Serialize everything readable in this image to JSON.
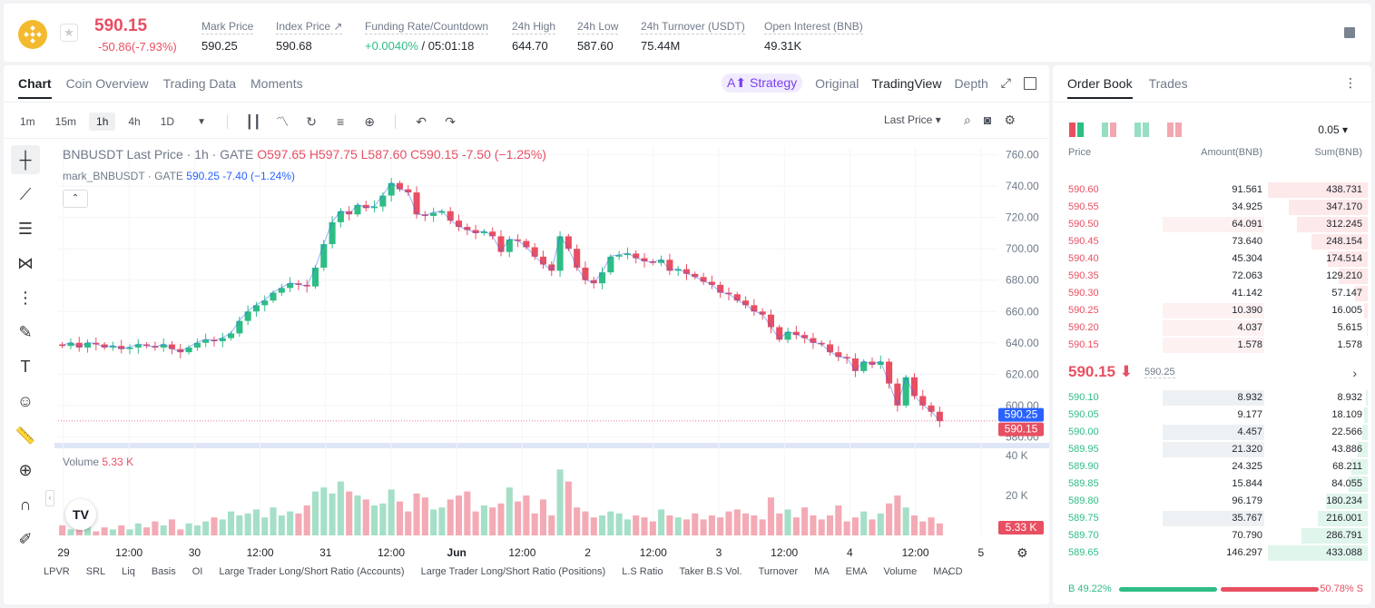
{
  "header": {
    "price": "590.15",
    "change": "-50.86(-7.93%)",
    "stats": [
      {
        "label": "Mark Price",
        "value": "590.25"
      },
      {
        "label": "Index Price ↗",
        "value": "590.68"
      },
      {
        "label": "Funding Rate/Countdown",
        "value_green": "+0.0040%",
        "value": " / 05:01:18"
      },
      {
        "label": "24h High",
        "value": "644.70"
      },
      {
        "label": "24h Low",
        "value": "587.60"
      },
      {
        "label": "24h Turnover (USDT)",
        "value": "75.44M"
      },
      {
        "label": "Open Interest (BNB)",
        "value": "49.31K"
      }
    ]
  },
  "chart_tabs": [
    "Chart",
    "Coin Overview",
    "Trading Data",
    "Moments"
  ],
  "chart_modes": {
    "strategy": "Strategy",
    "original": "Original",
    "tradingview": "TradingView",
    "depth": "Depth"
  },
  "timeframes": [
    "1m",
    "15m",
    "1h",
    "4h",
    "1D"
  ],
  "selected_timeframe": "1h",
  "last_price_label": "Last Price",
  "legend": {
    "title": "BNBUSDT Last Price · 1h · GATE",
    "ohlc": "O597.65 H597.75 L587.60 C590.15 -7.50 (−1.25%)",
    "mark_title": "mark_BNBUSDT · GATE",
    "mark_values": "590.25 -7.40 (−1.24%)",
    "volume_title": "Volume",
    "volume_value": "5.33 K"
  },
  "indicators": [
    "LPVR",
    "SRL",
    "Liq",
    "Basis",
    "OI",
    "Large Trader Long/Short Ratio (Accounts)",
    "Large Trader Long/Short Ratio (Positions)",
    "L.S Ratio",
    "Taker B.S Vol.",
    "Turnover",
    "MA",
    "EMA",
    "Volume",
    "MACD"
  ],
  "colors": {
    "up": "#2ebd85",
    "down": "#e84f62",
    "mark": "#2962ff"
  },
  "chart_data": {
    "type": "candlestick",
    "price_axis": [
      "760.00",
      "740.00",
      "720.00",
      "700.00",
      "680.00",
      "660.00",
      "640.00",
      "620.00",
      "600.00",
      "580.00"
    ],
    "volume_axis": [
      "40 K",
      "20 K"
    ],
    "time_axis": [
      "29",
      "12:00",
      "30",
      "12:00",
      "31",
      "12:00",
      "Jun",
      "12:00",
      "2",
      "12:00",
      "3",
      "12:00",
      "4",
      "12:00",
      "5"
    ],
    "ylim": [
      575,
      765
    ],
    "mark_price_tag": "590.25",
    "last_price_tag": "590.15",
    "volume_tag": "5.33 K",
    "close_path": [
      638,
      640,
      637,
      640,
      639,
      637,
      638,
      636,
      637,
      639,
      638,
      637,
      639,
      636,
      634,
      637,
      640,
      642,
      641,
      643,
      646,
      654,
      660,
      664,
      667,
      672,
      675,
      678,
      677,
      676,
      688,
      703,
      717,
      724,
      722,
      728,
      726,
      727,
      734,
      742,
      738,
      736,
      722,
      721,
      723,
      724,
      718,
      714,
      712,
      710,
      711,
      708,
      698,
      706,
      705,
      701,
      695,
      690,
      686,
      708,
      700,
      688,
      680,
      678,
      685,
      695,
      696,
      697,
      694,
      692,
      691,
      693,
      686,
      687,
      684,
      682,
      679,
      677,
      672,
      671,
      667,
      664,
      660,
      658,
      650,
      642,
      647,
      645,
      643,
      640,
      639,
      634,
      631,
      630,
      622,
      628,
      626,
      628,
      614,
      600,
      618,
      606,
      600,
      596,
      590
    ],
    "volume_path": [
      5,
      3,
      4,
      6,
      2,
      4,
      3,
      5,
      3,
      6,
      4,
      7,
      5,
      8,
      3,
      6,
      5,
      7,
      9,
      8,
      12,
      10,
      11,
      13,
      9,
      14,
      10,
      12,
      11,
      15,
      22,
      24,
      21,
      27,
      22,
      20,
      18,
      15,
      16,
      23,
      17,
      12,
      21,
      19,
      13,
      14,
      18,
      20,
      22,
      12,
      15,
      14,
      16,
      24,
      17,
      20,
      11,
      18,
      10,
      33,
      27,
      14,
      12,
      9,
      10,
      12,
      11,
      8,
      10,
      9,
      7,
      13,
      10,
      9,
      8,
      11,
      8,
      10,
      9,
      12,
      13,
      11,
      10,
      8,
      19,
      11,
      13,
      9,
      14,
      10,
      8,
      10,
      15,
      7,
      9,
      12,
      8,
      11,
      16,
      20,
      14,
      10,
      7,
      9,
      6
    ]
  },
  "orderbook": {
    "tabs": [
      "Order Book",
      "Trades"
    ],
    "precision": "0.05",
    "headers": [
      "Price",
      "Amount(BNB)",
      "Sum(BNB)"
    ],
    "asks": [
      {
        "price": "590.60",
        "amount": "91.561",
        "sum": "438.731",
        "sumpct": 1.0,
        "amtpct": 0.0
      },
      {
        "price": "590.55",
        "amount": "34.925",
        "sum": "347.170",
        "sumpct": 0.79,
        "amtpct": 0.0
      },
      {
        "price": "590.50",
        "amount": "64.091",
        "sum": "312.245",
        "sumpct": 0.71,
        "amtpct": 1.0
      },
      {
        "price": "590.45",
        "amount": "73.640",
        "sum": "248.154",
        "sumpct": 0.56,
        "amtpct": 0.0
      },
      {
        "price": "590.40",
        "amount": "45.304",
        "sum": "174.514",
        "sumpct": 0.4,
        "amtpct": 0.0
      },
      {
        "price": "590.35",
        "amount": "72.063",
        "sum": "129.210",
        "sumpct": 0.29,
        "amtpct": 0.0
      },
      {
        "price": "590.30",
        "amount": "41.142",
        "sum": "57.147",
        "sumpct": 0.13,
        "amtpct": 0.0
      },
      {
        "price": "590.25",
        "amount": "10.390",
        "sum": "16.005",
        "sumpct": 0.04,
        "amtpct": 1.0
      },
      {
        "price": "590.20",
        "amount": "4.037",
        "sum": "5.615",
        "sumpct": 0.01,
        "amtpct": 1.0
      },
      {
        "price": "590.15",
        "amount": "1.578",
        "sum": "1.578",
        "sumpct": 0.0,
        "amtpct": 1.0
      }
    ],
    "mid_price": "590.15 ⬇",
    "mid_mark": "590.25",
    "bids": [
      {
        "price": "590.10",
        "amount": "8.932",
        "sum": "8.932",
        "sumpct": 0.02,
        "amtpct": 1.0
      },
      {
        "price": "590.05",
        "amount": "9.177",
        "sum": "18.109",
        "sumpct": 0.04,
        "amtpct": 0.0
      },
      {
        "price": "590.00",
        "amount": "4.457",
        "sum": "22.566",
        "sumpct": 0.05,
        "amtpct": 1.0
      },
      {
        "price": "589.95",
        "amount": "21.320",
        "sum": "43.886",
        "sumpct": 0.1,
        "amtpct": 1.0
      },
      {
        "price": "589.90",
        "amount": "24.325",
        "sum": "68.211",
        "sumpct": 0.16,
        "amtpct": 0.0
      },
      {
        "price": "589.85",
        "amount": "15.844",
        "sum": "84.055",
        "sumpct": 0.19,
        "amtpct": 0.0
      },
      {
        "price": "589.80",
        "amount": "96.179",
        "sum": "180.234",
        "sumpct": 0.42,
        "amtpct": 0.0
      },
      {
        "price": "589.75",
        "amount": "35.767",
        "sum": "216.001",
        "sumpct": 0.5,
        "amtpct": 1.0
      },
      {
        "price": "589.70",
        "amount": "70.790",
        "sum": "286.791",
        "sumpct": 0.66,
        "amtpct": 0.0
      },
      {
        "price": "589.65",
        "amount": "146.297",
        "sum": "433.088",
        "sumpct": 1.0,
        "amtpct": 0.0
      }
    ],
    "buy_ratio": "B 49.22%",
    "sell_ratio": "50.78% S",
    "buy_pct": 49.22
  }
}
